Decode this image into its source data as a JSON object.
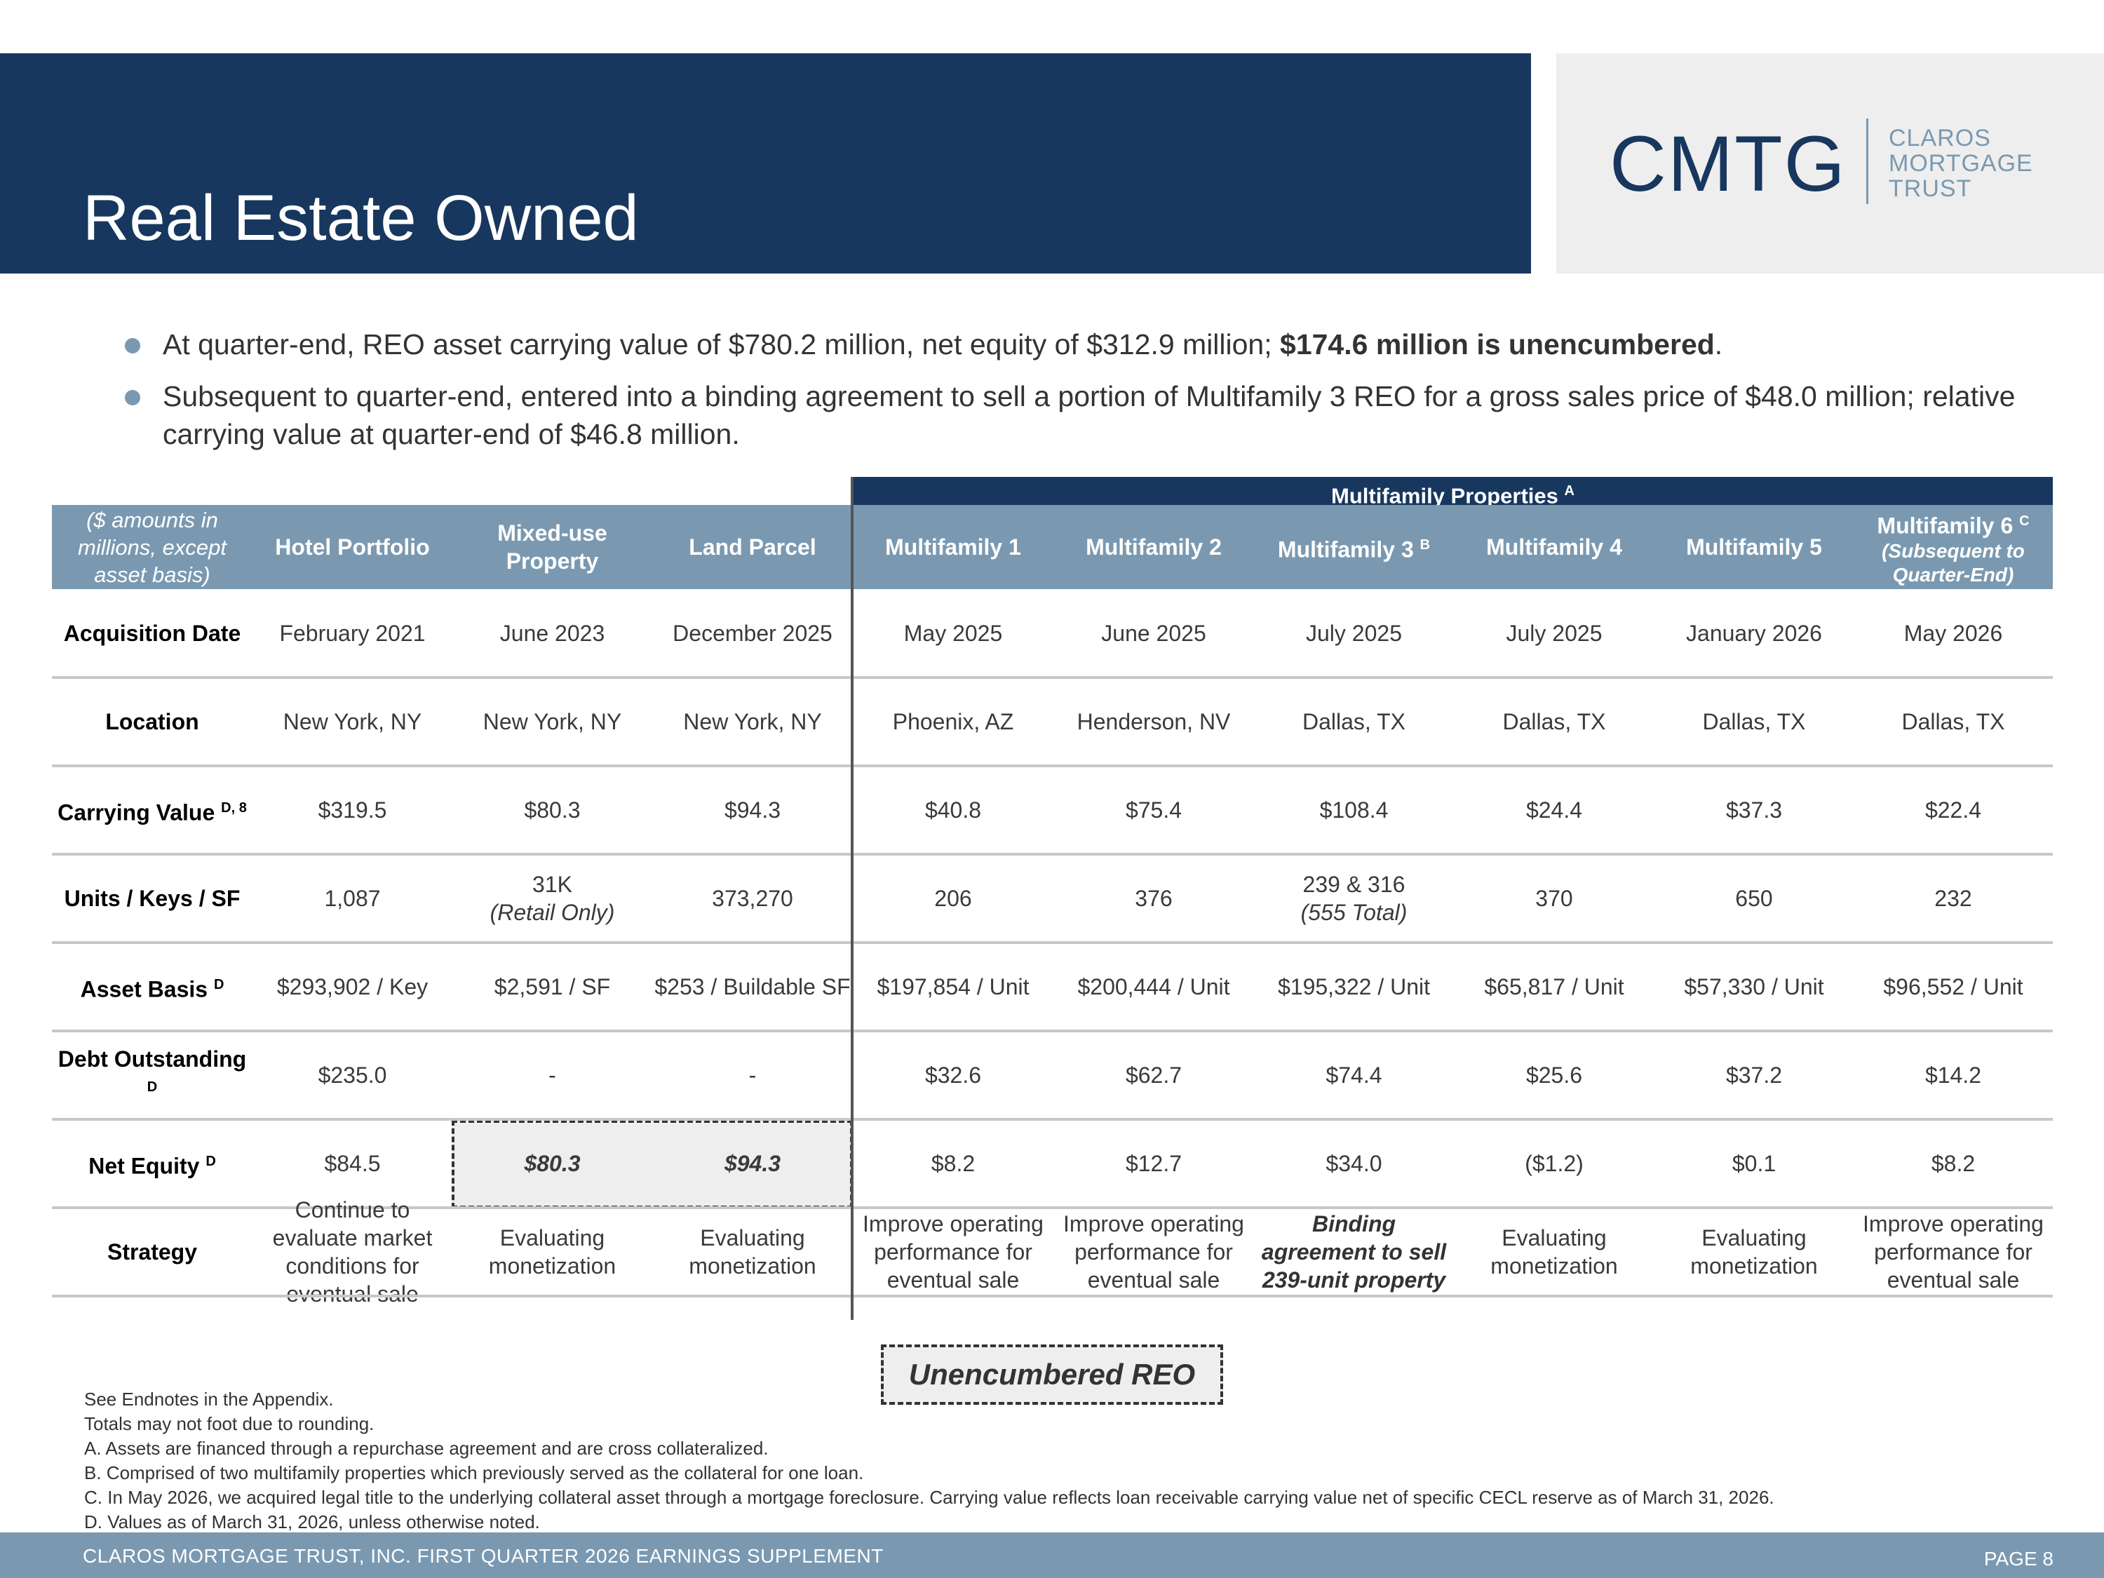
{
  "header": {
    "title": "Real Estate Owned"
  },
  "logo": {
    "mark": "CMTG",
    "words": [
      "CLAROS",
      "MORTGAGE",
      "TRUST"
    ]
  },
  "bullets": [
    {
      "text": "At quarter-end, REO asset carrying value of $780.2 million, net equity of $312.9 million; ",
      "bold": "174.6 million is unencumbered",
      "bold_prefix": "$",
      "end": "."
    },
    {
      "text": "Subsequent to quarter-end, entered into a binding agreement to sell a portion of Multifamily 3 REO for a gross sales price of $48.0 million; relative carrying value at quarter-end of $46.8 million."
    }
  ],
  "table": {
    "group_header": {
      "label": "Multifamily Properties",
      "sup": "A"
    },
    "corner": "($ amounts in millions, except asset basis)",
    "columns": [
      {
        "label": "Hotel Portfolio",
        "sup": "",
        "sub": ""
      },
      {
        "label": "Mixed-use Property",
        "sup": "",
        "sub": ""
      },
      {
        "label": "Land Parcel",
        "sup": "",
        "sub": ""
      },
      {
        "label": "Multifamily 1",
        "sup": "",
        "sub": ""
      },
      {
        "label": "Multifamily 2",
        "sup": "",
        "sub": ""
      },
      {
        "label": "Multifamily 3",
        "sup": "B",
        "sub": ""
      },
      {
        "label": "Multifamily 4",
        "sup": "",
        "sub": ""
      },
      {
        "label": "Multifamily 5",
        "sup": "",
        "sub": ""
      },
      {
        "label": "Multifamily 6",
        "sup": "C",
        "sub": "(Subsequent to Quarter-End)"
      }
    ],
    "rows": [
      {
        "label": "Acquisition Date",
        "sup": "",
        "values": [
          "February 2021",
          "June 2023",
          "December 2025",
          "May 2025",
          "June 2025",
          "July 2025",
          "July 2025",
          "January 2026",
          "May 2026"
        ]
      },
      {
        "label": "Location",
        "sup": "",
        "values": [
          "New York, NY",
          "New York, NY",
          "New York, NY",
          "Phoenix, AZ",
          "Henderson, NV",
          "Dallas, TX",
          "Dallas, TX",
          "Dallas, TX",
          "Dallas, TX"
        ]
      },
      {
        "label": "Carrying Value",
        "sup": "D, 8",
        "values": [
          "$319.5",
          "$80.3",
          "$94.3",
          "$40.8",
          "$75.4",
          "$108.4",
          "$24.4",
          "$37.3",
          "$22.4"
        ]
      },
      {
        "label": "Units / Keys / SF",
        "sup": "",
        "values": [
          "1,087",
          "31K",
          "373,270",
          "206",
          "376",
          "239 & 316",
          "370",
          "650",
          "232"
        ],
        "subs": [
          "",
          "(Retail Only)",
          "",
          "",
          "",
          "(555 Total)",
          "",
          "",
          ""
        ]
      },
      {
        "label": "Asset Basis",
        "sup": "D",
        "values": [
          "$293,902 / Key",
          "$2,591 / SF",
          "$253 / Buildable SF",
          "$197,854 / Unit",
          "$200,444 / Unit",
          "$195,322 / Unit",
          "$65,817 / Unit",
          "$57,330 / Unit",
          "$96,552 / Unit"
        ]
      },
      {
        "label": "Debt Outstanding",
        "sup": "D",
        "values": [
          "$235.0",
          "-",
          "-",
          "$32.6",
          "$62.7",
          "$74.4",
          "$25.6",
          "$37.2",
          "$14.2"
        ]
      },
      {
        "label": "Net Equity",
        "sup": "D",
        "values": [
          "$84.5",
          "$80.3",
          "$94.3",
          "$8.2",
          "$12.7",
          "$34.0",
          "($1.2)",
          "$0.1",
          "$8.2"
        ]
      },
      {
        "label": "Strategy",
        "sup": "",
        "values": [
          "Continue to evaluate market conditions for eventual sale",
          "Evaluating monetization",
          "Evaluating monetization",
          "Improve operating performance for eventual sale",
          "Improve operating performance for eventual sale",
          "Binding agreement to sell 239-unit property",
          "Evaluating monetization",
          "Evaluating monetization",
          "Improve operating performance for eventual sale"
        ]
      }
    ]
  },
  "legend": {
    "label": "Unencumbered REO"
  },
  "notes": [
    "See Endnotes in the Appendix.",
    "Totals may not foot due to rounding.",
    "A. Assets are financed through a repurchase agreement and are cross collateralized.",
    "B. Comprised of two multifamily properties which previously served as the collateral for one loan.",
    "C. In May 2026, we acquired legal title to the underlying collateral asset through a mortgage foreclosure. Carrying value reflects loan receivable carrying value net of specific CECL reserve as of March 31, 2026.",
    "D. Values as of March 31, 2026, unless otherwise noted."
  ],
  "footer": {
    "text": "CLAROS MORTGAGE TRUST, INC. FIRST QUARTER 2026 EARNINGS SUPPLEMENT",
    "page": "PAGE 8"
  },
  "colors": {
    "navy": "#17375e",
    "steel": "#7a99b1",
    "panel": "#eeeeee"
  }
}
